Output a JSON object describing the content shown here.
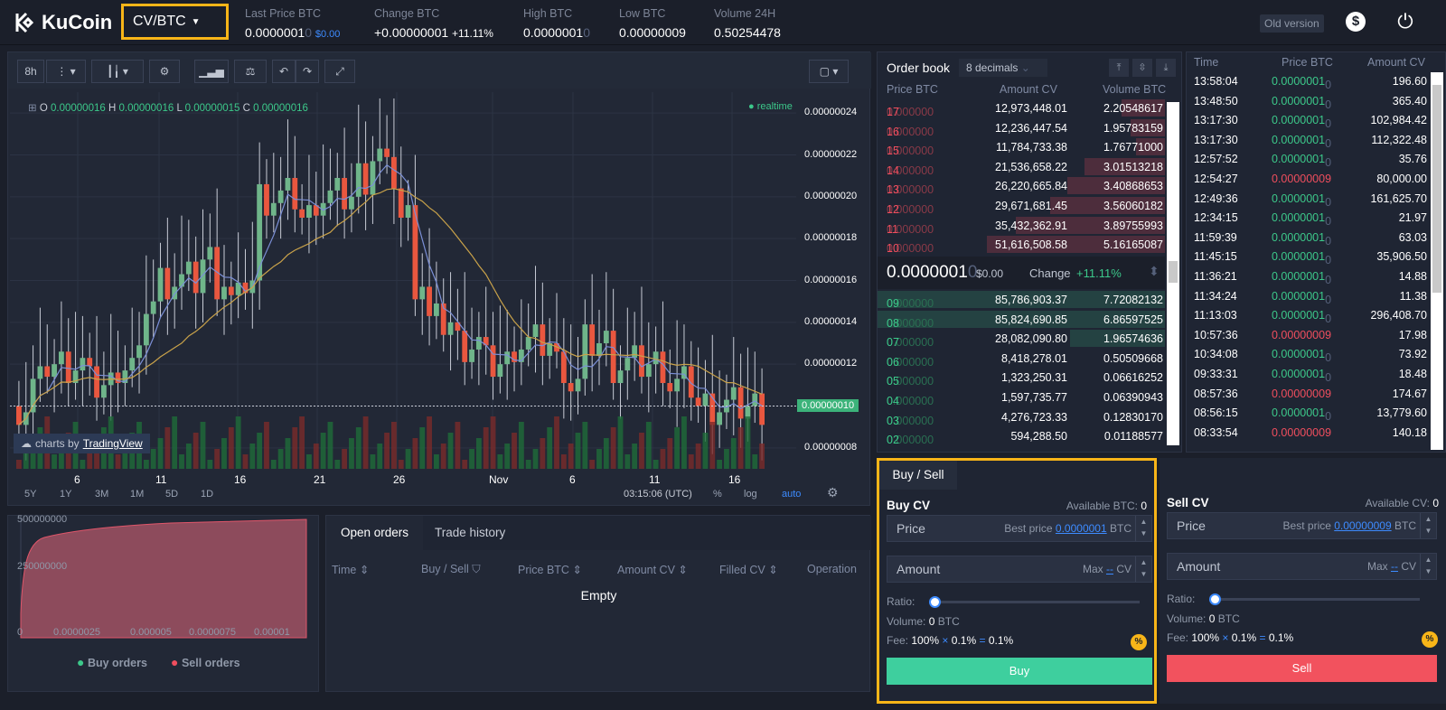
{
  "header": {
    "logo_text": "KuCoin",
    "pair": "CV/BTC",
    "stats": [
      {
        "label": "Last Price BTC",
        "value": "0.0000001",
        "faded": "0",
        "extra": "$0.00"
      },
      {
        "label": "Change BTC",
        "value": "+0.00000001",
        "extra": "+11.11%"
      },
      {
        "label": "High BTC",
        "value": "0.0000001",
        "faded": "0"
      },
      {
        "label": "Low BTC",
        "value": "0.00000009"
      },
      {
        "label": "Volume 24H",
        "value": "0.50254478"
      }
    ],
    "old_version": "Old version",
    "dollar_glyph": "$",
    "power_glyph": "⏻"
  },
  "chart": {
    "interval": "8h",
    "ohlc": {
      "o_label": "O",
      "o": "0.00000016",
      "h_label": "H",
      "h": "0.00000016",
      "l_label": "L",
      "l": "0.00000015",
      "c_label": "C",
      "c": "0.00000016"
    },
    "realtime": "realtime",
    "price_ticks": [
      "0.00000024",
      "0.00000022",
      "0.00000020",
      "0.00000018",
      "0.00000016",
      "0.00000014",
      "0.00000012",
      "0.00000010",
      "0.00000008"
    ],
    "current_price_tag": "0.00000010",
    "time_ticks": [
      "6",
      "11",
      "16",
      "21",
      "26",
      "Nov",
      "6",
      "11",
      "16"
    ],
    "ranges": [
      "5Y",
      "1Y",
      "3M",
      "1M",
      "5D",
      "1D"
    ],
    "clock": "03:15:06 (UTC)",
    "pct": "%",
    "log": "log",
    "auto": "auto",
    "tv_prefix": "charts by",
    "tv_name": "TradingView"
  },
  "chart_data": {
    "type": "candlestick",
    "ylim": [
      7e-08,
      2.5e-07
    ],
    "close_approx": [
      1e-07,
      1.1e-07,
      1.2e-07,
      1.2e-07,
      1.2e-07,
      1.1e-07,
      1.1e-07,
      1.2e-07,
      1.2e-07,
      1.5e-07,
      1.6e-07,
      1.6e-07,
      1.6e-07,
      1.7e-07,
      1.6e-07,
      1.5e-07,
      1.6e-07,
      2e-07,
      2e-07,
      2e-07,
      1.9e-07,
      2e-07,
      2e-07,
      2e-07,
      2.1e-07,
      2.2e-07,
      2.1e-07,
      1.9e-07,
      1.6e-07,
      1.4e-07,
      1.4e-07,
      1.3e-07,
      1.3e-07,
      1.2e-07,
      1.2e-07,
      1.3e-07,
      1.3e-07,
      1.3e-07,
      1.2e-07,
      1.1e-07,
      1.3e-07,
      1.3e-07,
      1.2e-07,
      1.2e-07,
      1.2e-07,
      1.2e-07,
      1.1e-07,
      1.1e-07,
      1e-07,
      1e-07,
      1e-07,
      1e-07,
      1e-07
    ]
  },
  "depth": {
    "y_ticks": [
      "500000000",
      "250000000"
    ],
    "x_ticks": [
      "0",
      "0.0000025",
      "0.000005",
      "0.0000075",
      "0.00001"
    ],
    "legend_buy": "Buy orders",
    "legend_sell": "Sell orders"
  },
  "orders": {
    "tab_open": "Open orders",
    "tab_history": "Trade history",
    "columns": [
      "Time",
      "Buy / Sell",
      "Price BTC",
      "Amount CV",
      "Filled CV",
      "Operation"
    ],
    "empty": "Empty"
  },
  "orderbook": {
    "title": "Order book",
    "decimals": "8 decimals",
    "col_price": "Price BTC",
    "col_amount": "Amount CV",
    "col_volume": "Volume BTC",
    "asks": [
      {
        "p1": "0.000000",
        "p2": "17",
        "amount": "12,973,448.01",
        "volume": "2.20548617",
        "depth": 0.15
      },
      {
        "p1": "0.000000",
        "p2": "16",
        "amount": "12,236,447.54",
        "volume": "1.95783159",
        "depth": 0.12
      },
      {
        "p1": "0.000000",
        "p2": "15",
        "amount": "11,784,733.38",
        "volume": "1.76771000",
        "depth": 0.1
      },
      {
        "p1": "0.000000",
        "p2": "14",
        "amount": "21,536,658.22",
        "volume": "3.01513218",
        "depth": 0.28
      },
      {
        "p1": "0.000000",
        "p2": "13",
        "amount": "26,220,665.84",
        "volume": "3.40868653",
        "depth": 0.34
      },
      {
        "p1": "0.000000",
        "p2": "12",
        "amount": "29,671,681.45",
        "volume": "3.56060182",
        "depth": 0.4
      },
      {
        "p1": "0.000000",
        "p2": "11",
        "amount": "35,432,362.91",
        "volume": "3.89755993",
        "depth": 0.52
      },
      {
        "p1": "0.000000",
        "p2": "10",
        "amount": "51,616,508.58",
        "volume": "5.16165087",
        "depth": 0.62
      }
    ],
    "last_price": "0.0000001",
    "last_faded": "0",
    "last_usd": "$0.00",
    "change_label": "Change",
    "change_value": "+11.11%",
    "bids": [
      {
        "p1": "0.000000",
        "p2": "09",
        "amount": "85,786,903.37",
        "volume": "7.72082132",
        "depth": 1.0
      },
      {
        "p1": "0.000000",
        "p2": "08",
        "amount": "85,824,690.85",
        "volume": "6.86597525",
        "depth": 1.0
      },
      {
        "p1": "0.000000",
        "p2": "07",
        "amount": "28,082,090.80",
        "volume": "1.96574636",
        "depth": 0.33
      },
      {
        "p1": "0.000000",
        "p2": "06",
        "amount": "8,418,278.01",
        "volume": "0.50509668",
        "depth": 0.0
      },
      {
        "p1": "0.000000",
        "p2": "05",
        "amount": "1,323,250.31",
        "volume": "0.06616252",
        "depth": 0.0
      },
      {
        "p1": "0.000000",
        "p2": "04",
        "amount": "1,597,735.77",
        "volume": "0.06390943",
        "depth": 0.0
      },
      {
        "p1": "0.000000",
        "p2": "03",
        "amount": "4,276,723.33",
        "volume": "0.12830170",
        "depth": 0.0
      },
      {
        "p1": "0.000000",
        "p2": "02",
        "amount": "594,288.50",
        "volume": "0.01188577",
        "depth": 0.0
      }
    ]
  },
  "trades": {
    "col_time": "Time",
    "col_price": "Price BTC",
    "col_amount": "Amount CV",
    "rows": [
      {
        "time": "13:58:04",
        "price": "0.0000001",
        "faded": "0",
        "side": "buy",
        "amount": "196.60"
      },
      {
        "time": "13:48:50",
        "price": "0.0000001",
        "faded": "0",
        "side": "buy",
        "amount": "365.40"
      },
      {
        "time": "13:17:30",
        "price": "0.0000001",
        "faded": "0",
        "side": "buy",
        "amount": "102,984.42"
      },
      {
        "time": "13:17:30",
        "price": "0.0000001",
        "faded": "0",
        "side": "buy",
        "amount": "112,322.48"
      },
      {
        "time": "12:57:52",
        "price": "0.0000001",
        "faded": "0",
        "side": "buy",
        "amount": "35.76"
      },
      {
        "time": "12:54:27",
        "price": "0.00000009",
        "faded": "",
        "side": "sell",
        "amount": "80,000.00"
      },
      {
        "time": "12:49:36",
        "price": "0.0000001",
        "faded": "0",
        "side": "buy",
        "amount": "161,625.70"
      },
      {
        "time": "12:34:15",
        "price": "0.0000001",
        "faded": "0",
        "side": "buy",
        "amount": "21.97"
      },
      {
        "time": "11:59:39",
        "price": "0.0000001",
        "faded": "0",
        "side": "buy",
        "amount": "63.03"
      },
      {
        "time": "11:45:15",
        "price": "0.0000001",
        "faded": "0",
        "side": "buy",
        "amount": "35,906.50"
      },
      {
        "time": "11:36:21",
        "price": "0.0000001",
        "faded": "0",
        "side": "buy",
        "amount": "14.88"
      },
      {
        "time": "11:34:24",
        "price": "0.0000001",
        "faded": "0",
        "side": "buy",
        "amount": "11.38"
      },
      {
        "time": "11:13:03",
        "price": "0.0000001",
        "faded": "0",
        "side": "buy",
        "amount": "296,408.70"
      },
      {
        "time": "10:57:36",
        "price": "0.00000009",
        "faded": "",
        "side": "sell",
        "amount": "17.98"
      },
      {
        "time": "10:34:08",
        "price": "0.0000001",
        "faded": "0",
        "side": "buy",
        "amount": "73.92"
      },
      {
        "time": "09:33:31",
        "price": "0.0000001",
        "faded": "0",
        "side": "buy",
        "amount": "18.48"
      },
      {
        "time": "08:57:36",
        "price": "0.00000009",
        "faded": "",
        "side": "sell",
        "amount": "174.67"
      },
      {
        "time": "08:56:15",
        "price": "0.0000001",
        "faded": "0",
        "side": "buy",
        "amount": "13,779.60"
      },
      {
        "time": "08:33:54",
        "price": "0.00000009",
        "faded": "",
        "side": "sell",
        "amount": "140.18"
      }
    ]
  },
  "buysell": {
    "tab": "Buy / Sell",
    "buy_title": "Buy CV",
    "buy_available": "Available BTC:",
    "buy_available_value": "0",
    "sell_title": "Sell CV",
    "sell_available": "Available CV:",
    "sell_available_value": "0",
    "price_placeholder": "Price",
    "best_price_label": "Best price",
    "buy_best_price": "0.0000001",
    "sell_best_price": "0.00000009",
    "btc": "BTC",
    "amount_placeholder": "Amount",
    "max_label": "Max",
    "max_value": "--",
    "cv": "CV",
    "ratio_label": "Ratio:",
    "ratio": 0,
    "volume_label": "Volume:",
    "volume_value": "0",
    "fee_label": "Fee:",
    "fee_a": "100%",
    "fee_x": "×",
    "fee_b": "0.1%",
    "fee_eq": "=",
    "fee_c": "0.1%",
    "buy_button": "Buy",
    "sell_button": "Sell",
    "colors": {
      "buy": "#3ecf9e",
      "sell": "#f2525e",
      "accent": "#f8b518"
    }
  }
}
